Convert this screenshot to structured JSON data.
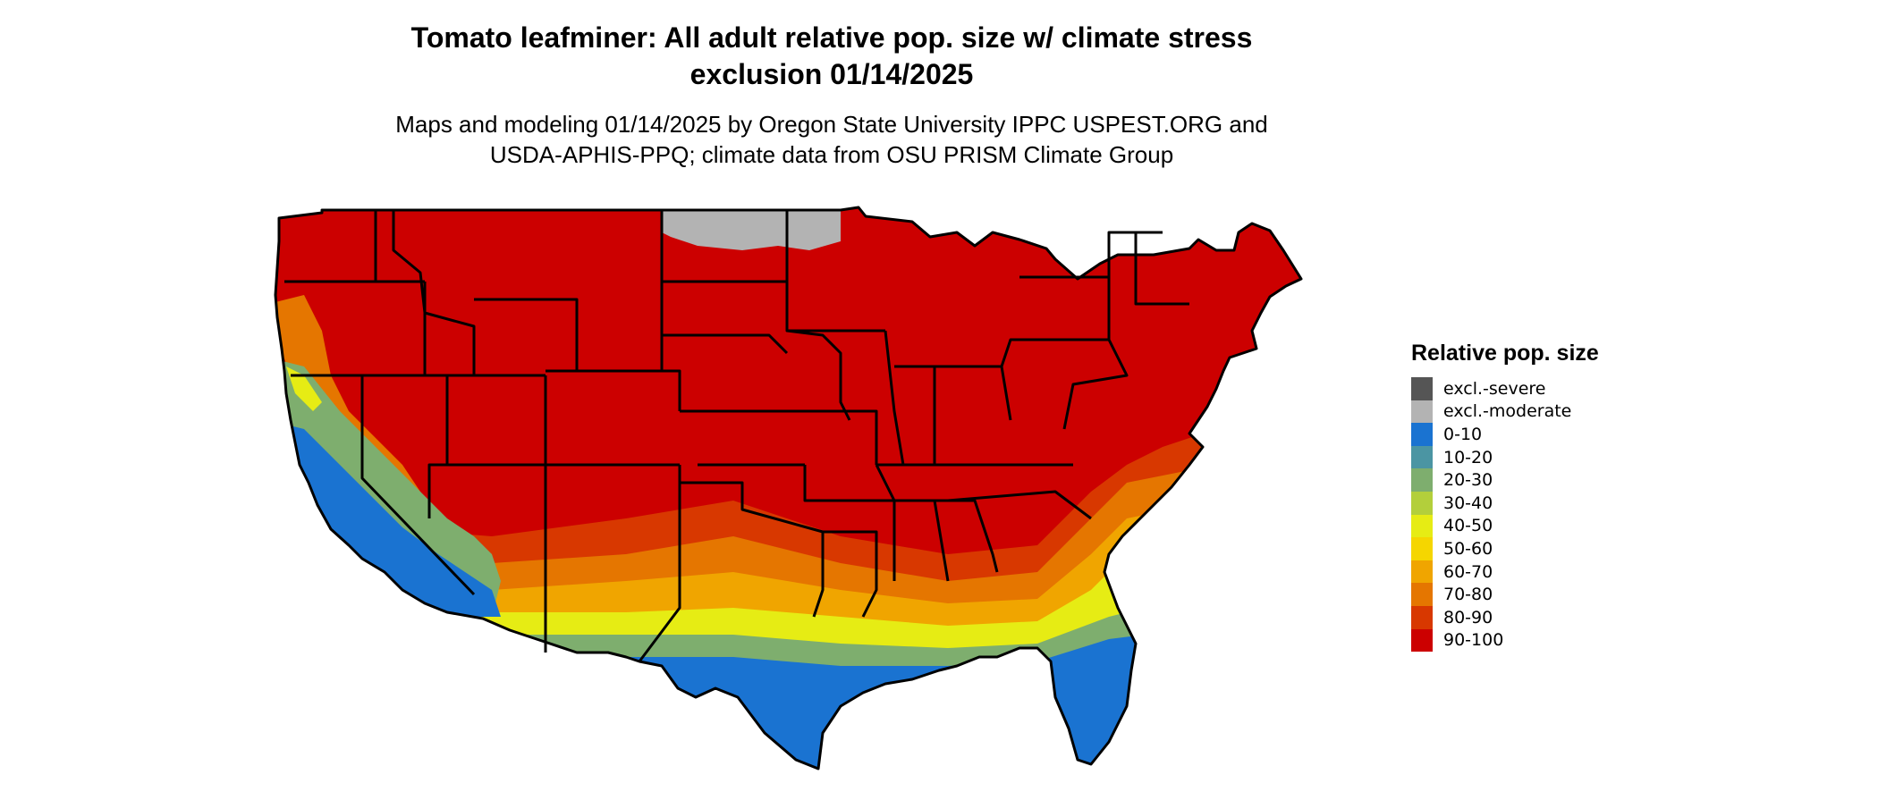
{
  "title_line1": "Tomato leafminer: All adult relative pop. size w/ climate stress",
  "title_line2": "exclusion 01/14/2025",
  "subtitle_line1": "Maps and modeling 01/14/2025 by Oregon State University IPPC USPEST.ORG and",
  "subtitle_line2": "USDA-APHIS-PPQ; climate data from OSU PRISM Climate Group",
  "legend": {
    "title": "Relative pop. size",
    "items": [
      {
        "label": "excl.-severe",
        "color": "#555555"
      },
      {
        "label": "excl.-moderate",
        "color": "#b3b3b3"
      },
      {
        "label": "0-10",
        "color": "#1a73d1"
      },
      {
        "label": "10-20",
        "color": "#4b95a3"
      },
      {
        "label": "20-30",
        "color": "#7eae6e"
      },
      {
        "label": "30-40",
        "color": "#b3cf3b"
      },
      {
        "label": "40-50",
        "color": "#e6ec14"
      },
      {
        "label": "50-60",
        "color": "#f5d600"
      },
      {
        "label": "60-70",
        "color": "#f0a500"
      },
      {
        "label": "70-80",
        "color": "#e57600"
      },
      {
        "label": "80-90",
        "color": "#d83800"
      },
      {
        "label": "90-100",
        "color": "#cc0000"
      }
    ]
  },
  "map": {
    "colors": {
      "high": "#cc0000",
      "orange": "#e57600",
      "yellow": "#e6ec14",
      "green": "#7eae6e",
      "blue": "#1a73d1",
      "grey": "#b3b3b3",
      "outline": "#000000"
    }
  }
}
